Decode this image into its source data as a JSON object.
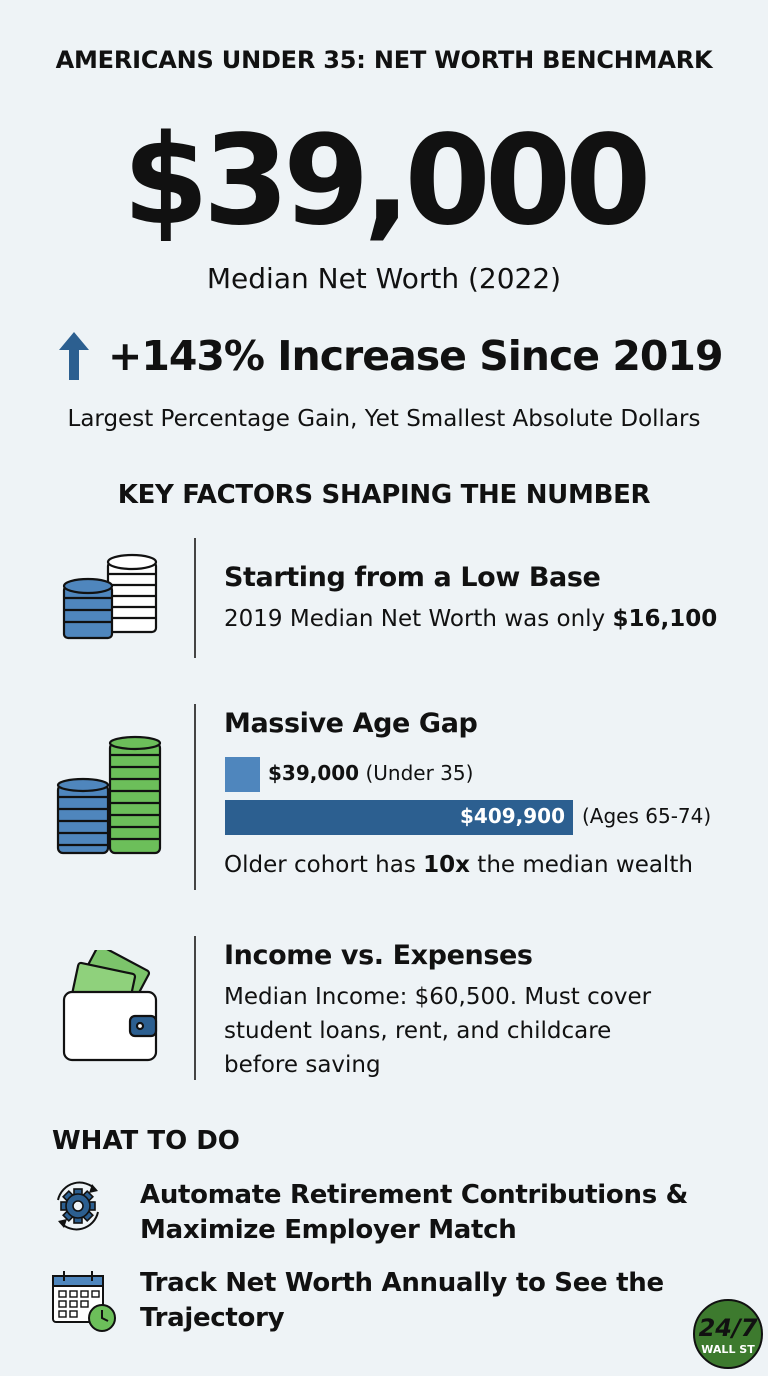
{
  "header": {
    "title": "AMERICANS UNDER 35: NET WORTH BENCHMARK",
    "hero_value": "$39,000",
    "hero_subtitle": "Median Net Worth (2022)",
    "increase": "+143% Increase Since 2019",
    "tagline": "Largest Percentage Gain, Yet Smallest Absolute Dollars"
  },
  "factors": {
    "heading": "KEY FACTORS SHAPING THE NUMBER",
    "low_base": {
      "title": "Starting from a Low Base",
      "text": "2019 Median Net Worth was only ",
      "value": "$16,100",
      "icon": "coin-stacks-icon"
    },
    "age_gap": {
      "title": "Massive Age Gap",
      "young": {
        "value": "$39,000",
        "label": "(Under 35)",
        "amount": 39000
      },
      "old": {
        "value": "$409,900",
        "label": "(Ages 65-74)",
        "amount": 409900
      },
      "note_prefix": "Older cohort has ",
      "note_bold": "10x",
      "note_suffix": " the median wealth",
      "icon": "tall-coin-stacks-icon"
    },
    "income": {
      "title": "Income vs. Expenses",
      "line1": "Median Income: $60,500. Must cover",
      "line2": "student loans, rent, and childcare",
      "line3": "before saving",
      "icon": "wallet-icon"
    }
  },
  "actions": {
    "heading": "WHAT TO DO",
    "item1_line1": "Automate Retirement Contributions &",
    "item1_line2": "Maximize Employer Match",
    "item2_line1": "Track Net Worth Annually to See the",
    "item2_line2": "Trajectory"
  },
  "brand": {
    "logo_text": "24/7",
    "logo_sub": "WALL ST",
    "color": "#3d7a2e"
  },
  "colors": {
    "blue": "#4f86bd",
    "dark_blue": "#2c5f90",
    "green": "#6cbf5a"
  }
}
